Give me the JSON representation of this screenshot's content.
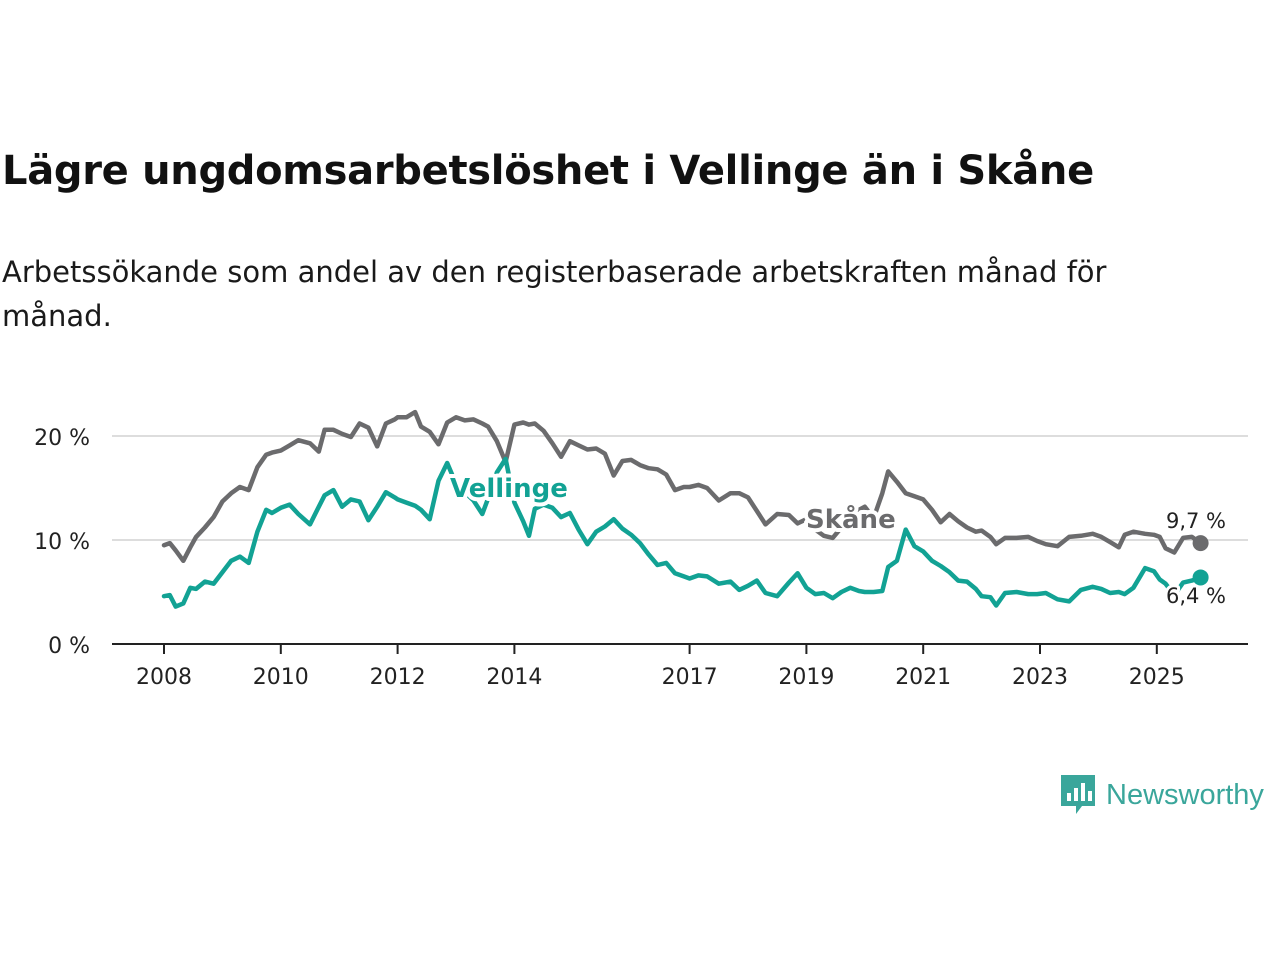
{
  "title": "Lägre ungdomsarbetslöshet i Vellinge än i Skåne",
  "subtitle": "Arbetssökande som andel av den registerbaserade arbetskraften månad för månad.",
  "brand": "Newsworthy",
  "colors": {
    "skane": "#6b6b6d",
    "vellinge": "#12a294",
    "grid": "#dddddd",
    "axis": "#222222",
    "brand": "#3aa69b"
  },
  "chart_data": {
    "type": "line",
    "x_unit": "year (decimal, monthly)",
    "xlim": [
      2008,
      2026.2
    ],
    "ylim": [
      0,
      20
    ],
    "yticks": [
      0,
      10,
      20
    ],
    "ytick_labels": [
      "0 %",
      "10 %",
      "20 %"
    ],
    "xticks": [
      2008,
      2010,
      2012,
      2014,
      2017,
      2019,
      2021,
      2023,
      2025
    ],
    "xtick_labels": [
      "2008",
      "2010",
      "2012",
      "2014",
      "2017",
      "2019",
      "2021",
      "2023",
      "2025"
    ],
    "series": [
      {
        "name": "Skåne",
        "label": "Skåne",
        "end_label": "9,7 %",
        "x": [
          2008.0,
          2008.1,
          2008.2,
          2008.33,
          2008.45,
          2008.55,
          2008.7,
          2008.85,
          2009.0,
          2009.15,
          2009.3,
          2009.45,
          2009.6,
          2009.75,
          2009.85,
          2010.0,
          2010.15,
          2010.3,
          2010.5,
          2010.65,
          2010.75,
          2010.9,
          2011.05,
          2011.2,
          2011.35,
          2011.5,
          2011.65,
          2011.8,
          2011.95,
          2012.0,
          2012.15,
          2012.3,
          2012.4,
          2012.55,
          2012.7,
          2012.85,
          2013.0,
          2013.15,
          2013.3,
          2013.45,
          2013.55,
          2013.7,
          2013.85,
          2014.0,
          2014.15,
          2014.25,
          2014.35,
          2014.5,
          2014.65,
          2014.8,
          2014.95,
          2015.1,
          2015.25,
          2015.4,
          2015.55,
          2015.7,
          2015.85,
          2016.0,
          2016.15,
          2016.3,
          2016.45,
          2016.6,
          2016.75,
          2016.9,
          2017.0,
          2017.15,
          2017.3,
          2017.5,
          2017.7,
          2017.85,
          2018.0,
          2018.15,
          2018.3,
          2018.5,
          2018.7,
          2018.85,
          2019.0,
          2019.15,
          2019.3,
          2019.45,
          2019.6,
          2019.75,
          2019.9,
          2020.0,
          2020.15,
          2020.3,
          2020.4,
          2020.55,
          2020.7,
          2020.85,
          2021.0,
          2021.15,
          2021.3,
          2021.45,
          2021.6,
          2021.75,
          2021.9,
          2022.0,
          2022.15,
          2022.25,
          2022.4,
          2022.6,
          2022.8,
          2022.95,
          2023.1,
          2023.3,
          2023.5,
          2023.7,
          2023.9,
          2024.05,
          2024.2,
          2024.35,
          2024.45,
          2024.6,
          2024.8,
          2024.95,
          2025.05,
          2025.15,
          2025.3,
          2025.45,
          2025.6,
          2025.75
        ],
        "y": [
          9.5,
          9.7,
          9.0,
          8.0,
          9.3,
          10.3,
          11.2,
          12.2,
          13.7,
          14.5,
          15.1,
          14.8,
          17.0,
          18.2,
          18.4,
          18.6,
          19.1,
          19.6,
          19.3,
          18.5,
          20.6,
          20.6,
          20.2,
          19.9,
          21.2,
          20.8,
          19.0,
          21.2,
          21.6,
          21.8,
          21.8,
          22.3,
          20.9,
          20.4,
          19.2,
          21.3,
          21.8,
          21.5,
          21.6,
          21.2,
          20.9,
          19.5,
          17.5,
          21.1,
          21.3,
          21.1,
          21.2,
          20.5,
          19.3,
          18.0,
          19.5,
          19.1,
          18.7,
          18.8,
          18.3,
          16.2,
          17.6,
          17.7,
          17.2,
          16.9,
          16.8,
          16.3,
          14.8,
          15.1,
          15.1,
          15.3,
          15.0,
          13.8,
          14.5,
          14.5,
          14.1,
          12.8,
          11.5,
          12.5,
          12.4,
          11.6,
          12.0,
          11.0,
          10.4,
          10.2,
          11.2,
          12.7,
          12.9,
          13.2,
          12.1,
          14.5,
          16.6,
          15.6,
          14.5,
          14.2,
          13.9,
          12.9,
          11.7,
          12.5,
          11.8,
          11.2,
          10.8,
          10.9,
          10.3,
          9.6,
          10.2,
          10.2,
          10.3,
          9.9,
          9.6,
          9.4,
          10.3,
          10.4,
          10.6,
          10.3,
          9.8,
          9.3,
          10.5,
          10.8,
          10.6,
          10.5,
          10.3,
          9.2,
          8.8,
          10.2,
          10.3,
          9.7
        ]
      },
      {
        "name": "Vellinge",
        "label": "Vellinge",
        "end_label": "6,4 %",
        "x": [
          2008.0,
          2008.1,
          2008.2,
          2008.33,
          2008.45,
          2008.55,
          2008.7,
          2008.85,
          2009.0,
          2009.15,
          2009.3,
          2009.45,
          2009.6,
          2009.75,
          2009.85,
          2010.0,
          2010.15,
          2010.3,
          2010.5,
          2010.65,
          2010.75,
          2010.9,
          2011.05,
          2011.2,
          2011.35,
          2011.5,
          2011.65,
          2011.8,
          2011.95,
          2012.0,
          2012.15,
          2012.3,
          2012.4,
          2012.55,
          2012.7,
          2012.85,
          2013.0,
          2013.15,
          2013.3,
          2013.45,
          2013.55,
          2013.7,
          2013.85,
          2014.0,
          2014.15,
          2014.25,
          2014.35,
          2014.5,
          2014.65,
          2014.8,
          2014.95,
          2015.1,
          2015.25,
          2015.4,
          2015.55,
          2015.7,
          2015.85,
          2016.0,
          2016.15,
          2016.3,
          2016.45,
          2016.6,
          2016.75,
          2016.9,
          2017.0,
          2017.15,
          2017.3,
          2017.5,
          2017.7,
          2017.85,
          2018.0,
          2018.15,
          2018.3,
          2018.5,
          2018.7,
          2018.85,
          2019.0,
          2019.15,
          2019.3,
          2019.45,
          2019.6,
          2019.75,
          2019.9,
          2020.0,
          2020.15,
          2020.3,
          2020.4,
          2020.55,
          2020.7,
          2020.85,
          2021.0,
          2021.15,
          2021.3,
          2021.45,
          2021.6,
          2021.75,
          2021.9,
          2022.0,
          2022.15,
          2022.25,
          2022.4,
          2022.6,
          2022.8,
          2022.95,
          2023.1,
          2023.3,
          2023.5,
          2023.7,
          2023.9,
          2024.05,
          2024.2,
          2024.35,
          2024.45,
          2024.6,
          2024.8,
          2024.95,
          2025.05,
          2025.15,
          2025.3,
          2025.45,
          2025.6,
          2025.75
        ],
        "y": [
          4.6,
          4.7,
          3.6,
          3.9,
          5.4,
          5.3,
          6.0,
          5.8,
          6.9,
          8.0,
          8.4,
          7.8,
          10.8,
          12.9,
          12.6,
          13.1,
          13.4,
          12.5,
          11.5,
          13.2,
          14.3,
          14.8,
          13.2,
          13.9,
          13.7,
          11.9,
          13.2,
          14.6,
          14.1,
          13.9,
          13.6,
          13.3,
          12.9,
          12.0,
          15.7,
          17.4,
          15.4,
          14.6,
          13.8,
          12.5,
          14.0,
          16.5,
          17.8,
          13.6,
          11.8,
          10.4,
          13.0,
          13.4,
          13.1,
          12.2,
          12.6,
          11.0,
          9.6,
          10.8,
          11.3,
          12.0,
          11.1,
          10.5,
          9.7,
          8.6,
          7.6,
          7.8,
          6.8,
          6.5,
          6.3,
          6.6,
          6.5,
          5.8,
          6.0,
          5.2,
          5.6,
          6.1,
          4.9,
          4.6,
          5.9,
          6.8,
          5.4,
          4.8,
          4.9,
          4.4,
          5.0,
          5.4,
          5.1,
          5.0,
          5.0,
          5.1,
          7.4,
          8.0,
          11.0,
          9.4,
          8.9,
          8.0,
          7.5,
          6.9,
          6.1,
          6.0,
          5.3,
          4.6,
          4.5,
          3.7,
          4.9,
          5.0,
          4.8,
          4.8,
          4.9,
          4.3,
          4.1,
          5.2,
          5.5,
          5.3,
          4.9,
          5.0,
          4.8,
          5.4,
          7.3,
          7.0,
          6.2,
          5.8,
          4.7,
          5.9,
          6.1,
          6.4
        ]
      }
    ]
  }
}
